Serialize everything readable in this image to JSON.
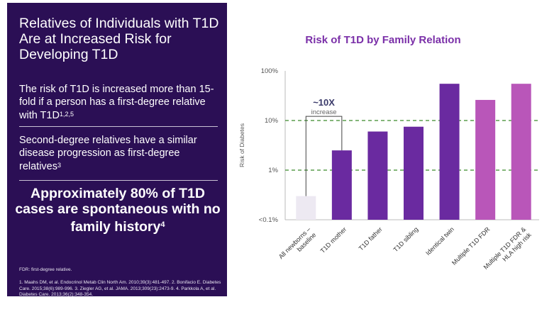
{
  "slide": {
    "title": "Relatives of Individuals with T1D Are at Increased Risk for Developing T1D",
    "bullet1_text": "The risk of T1D is increased more than 15-fold if a person has a first-degree relative with T1D",
    "bullet1_ref": "1,2,5",
    "bullet2_text": "Second-degree relatives have a similar disease progression as first-degree relatives",
    "bullet2_ref": "3",
    "highlight_text": "Approximately 80% of T1D cases are spontaneous with no family history",
    "highlight_ref": "4",
    "footnote_abbrev": "FDR: first-degree relative.",
    "footnote_refs": "1. Maahs DM, et al. Endocrinol Metab Clin North Am. 2010;39(3):481-497. 2. Bonifacio E. Diabetes Care. 2015;38(6):989-996. 3. Ziegler AG, et al. JAMA. 2013;309(23):2473-9. 4. Parkkola A, et al. Diabetes Care. 2013;36(2):348-354.",
    "colors": {
      "panel_bg": "#2b0f55",
      "title_purple": "#7a2fa8"
    }
  },
  "chart_data": {
    "type": "bar",
    "title": "Risk of T1D by Family Relation",
    "ylabel": "Risk of Diabetes",
    "xlabel": "",
    "yscale": "log",
    "ylim": [
      0.1,
      100
    ],
    "yticks": [
      {
        "value": 100,
        "label": "100%"
      },
      {
        "value": 10,
        "label": "10%"
      },
      {
        "value": 1,
        "label": "1%"
      },
      {
        "value": 0.1,
        "label": "<0.1%"
      }
    ],
    "reference_lines": [
      10,
      1
    ],
    "categories": [
      "All newborns – baseline",
      "T1D mother",
      "T1D father",
      "T1D sibling",
      "Identical twin",
      "Multiple T1D FDR",
      "Multiple T1D FDR & HLA high risk"
    ],
    "category_lines": [
      [
        "All newborns –",
        "baseline"
      ],
      [
        "T1D mother"
      ],
      [
        "T1D father"
      ],
      [
        "T1D sibling"
      ],
      [
        "Identical twin"
      ],
      [
        "Multiple T1D FDR"
      ],
      [
        "Multiple T1D FDR &",
        "HLA high risk"
      ]
    ],
    "values": [
      0.3,
      2.5,
      6,
      7.5,
      55,
      26,
      55
    ],
    "bar_colors": [
      "#ede9f2",
      "#6a2aa0",
      "#6a2aa0",
      "#6a2aa0",
      "#6a2aa0",
      "#b956b9",
      "#b956b9"
    ],
    "annotation": {
      "value": "~10X",
      "text": "increase",
      "from_index": 0,
      "to_index": 1
    },
    "grid": false,
    "legend": "none"
  }
}
